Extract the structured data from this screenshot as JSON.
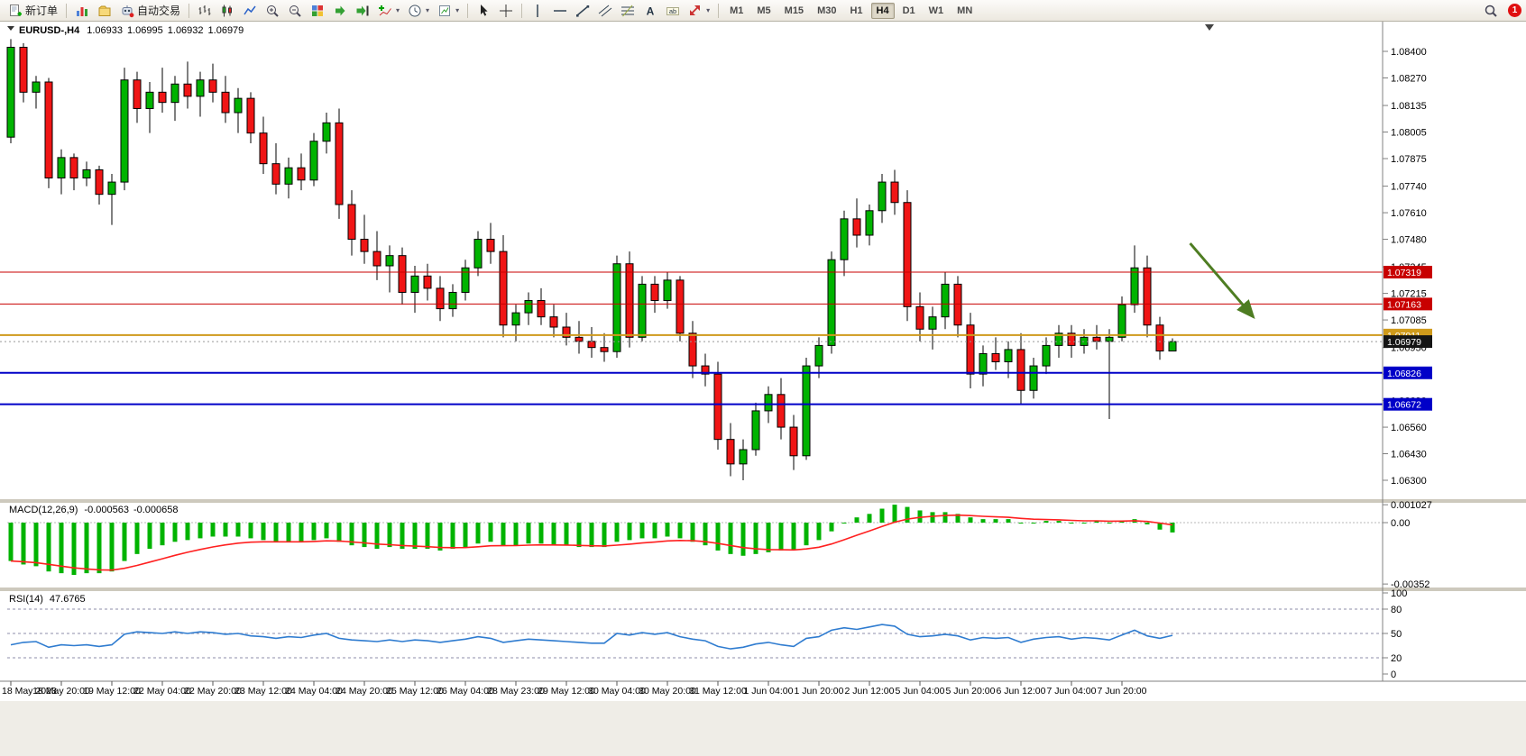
{
  "toolbar": {
    "items": [
      {
        "type": "labeled",
        "name": "new-order-button",
        "glyph": "neworder",
        "label": "新订单"
      },
      {
        "type": "sep"
      },
      {
        "type": "icon",
        "name": "charts-button",
        "glyph": "charts"
      },
      {
        "type": "icon",
        "name": "profiles-button",
        "glyph": "profiles"
      },
      {
        "type": "labeled",
        "name": "auto-trading-button",
        "glyph": "autotrade",
        "label": "自动交易"
      },
      {
        "type": "sep"
      },
      {
        "type": "icon",
        "name": "bar-chart-mode-button",
        "glyph": "bars"
      },
      {
        "type": "icon",
        "name": "candlestick-mode-button",
        "glyph": "candlesticks"
      },
      {
        "type": "icon",
        "name": "line-chart-mode-button",
        "glyph": "linechart"
      },
      {
        "type": "icon",
        "name": "zoom-in-button",
        "glyph": "zoomin"
      },
      {
        "type": "icon",
        "name": "zoom-out-button",
        "glyph": "zoomout"
      },
      {
        "type": "icon",
        "name": "tile-windows-button",
        "glyph": "tile"
      },
      {
        "type": "icon",
        "name": "auto-scroll-button",
        "glyph": "autoscroll"
      },
      {
        "type": "icon",
        "name": "chart-shift-button",
        "glyph": "chartshift"
      },
      {
        "type": "dropdown",
        "name": "indicators-button",
        "glyph": "indicators"
      },
      {
        "type": "dropdown",
        "name": "periods-button",
        "glyph": "periods"
      },
      {
        "type": "dropdown",
        "name": "templates-button",
        "glyph": "templates"
      },
      {
        "type": "sep"
      },
      {
        "type": "icon",
        "name": "cursor-button",
        "glyph": "cursor"
      },
      {
        "type": "icon",
        "name": "crosshair-button",
        "glyph": "crosshair"
      },
      {
        "type": "sep"
      },
      {
        "type": "icon",
        "name": "vertical-line-button",
        "glyph": "vline"
      },
      {
        "type": "icon",
        "name": "horizontal-line-button",
        "glyph": "hline"
      },
      {
        "type": "icon",
        "name": "trendline-button",
        "glyph": "tline"
      },
      {
        "type": "icon",
        "name": "channel-button",
        "glyph": "channel"
      },
      {
        "type": "icon",
        "name": "fibonacci-button",
        "glyph": "fibo"
      },
      {
        "type": "icon",
        "name": "text-button",
        "glyph": "textA"
      },
      {
        "type": "icon",
        "name": "text-label-button",
        "glyph": "textlabel"
      },
      {
        "type": "dropdown",
        "name": "arrows-button",
        "glyph": "arrows"
      },
      {
        "type": "sep"
      }
    ],
    "timeframes": [
      "M1",
      "M5",
      "M15",
      "M30",
      "H1",
      "H4",
      "D1",
      "W1",
      "MN"
    ],
    "active_timeframe": "H4",
    "notification_count": "1"
  },
  "chart": {
    "symbol": "EURUSD-",
    "timeframe": "H4",
    "open": "1.06933",
    "high": "1.06995",
    "low": "1.06932",
    "close": "1.06979"
  },
  "chart_data": {
    "type": "candlestick",
    "title": "EURUSD-,H4",
    "x_label_step": 4,
    "x_labels": [
      "18 May 2023",
      "18 May 20:00",
      "19 May 12:00",
      "22 May 04:00",
      "22 May 20:00",
      "23 May 12:00",
      "24 May 04:00",
      "24 May 20:00",
      "25 May 12:00",
      "26 May 04:00",
      "28 May 23:00",
      "29 May 12:00",
      "30 May 04:00",
      "30 May 20:00",
      "31 May 12:00",
      "1 Jun 04:00",
      "1 Jun 20:00",
      "2 Jun 12:00",
      "5 Jun 04:00",
      "5 Jun 20:00",
      "6 Jun 12:00",
      "7 Jun 04:00",
      "7 Jun 20:00"
    ],
    "y_ticks": [
      {
        "v": 1.084,
        "label": "1.08400"
      },
      {
        "v": 1.0827,
        "label": "1.08270"
      },
      {
        "v": 1.08135,
        "label": "1.08135"
      },
      {
        "v": 1.08005,
        "label": "1.08005"
      },
      {
        "v": 1.07875,
        "label": "1.07875"
      },
      {
        "v": 1.0774,
        "label": "1.07740"
      },
      {
        "v": 1.0761,
        "label": "1.07610"
      },
      {
        "v": 1.0748,
        "label": "1.07480"
      },
      {
        "v": 1.07345,
        "label": "1.07345"
      },
      {
        "v": 1.07215,
        "label": "1.07215"
      },
      {
        "v": 1.07085,
        "label": "1.07085"
      },
      {
        "v": 1.0695,
        "label": "1.06950"
      },
      {
        "v": 1.0682,
        "label": "1.06820"
      },
      {
        "v": 1.0669,
        "label": "1.06690"
      },
      {
        "v": 1.0656,
        "label": "1.06560"
      },
      {
        "v": 1.0643,
        "label": "1.06430"
      },
      {
        "v": 1.063,
        "label": "1.06300"
      }
    ],
    "candles": [
      [
        1.0798,
        1.0846,
        1.0795,
        1.0842
      ],
      [
        1.0842,
        1.0844,
        1.0815,
        1.082
      ],
      [
        1.082,
        1.0828,
        1.0812,
        1.0825
      ],
      [
        1.0825,
        1.0827,
        1.0773,
        1.0778
      ],
      [
        1.0778,
        1.0792,
        1.077,
        1.0788
      ],
      [
        1.0788,
        1.079,
        1.0772,
        1.0778
      ],
      [
        1.0778,
        1.0786,
        1.0774,
        1.0782
      ],
      [
        1.0782,
        1.0784,
        1.0765,
        1.077
      ],
      [
        1.077,
        1.078,
        1.0755,
        1.0776
      ],
      [
        1.0776,
        1.0832,
        1.0772,
        1.0826
      ],
      [
        1.0826,
        1.083,
        1.0805,
        1.0812
      ],
      [
        1.0812,
        1.0825,
        1.08,
        1.082
      ],
      [
        1.082,
        1.0832,
        1.081,
        1.0815
      ],
      [
        1.0815,
        1.0828,
        1.0806,
        1.0824
      ],
      [
        1.0824,
        1.0835,
        1.0812,
        1.0818
      ],
      [
        1.0818,
        1.083,
        1.0808,
        1.0826
      ],
      [
        1.0826,
        1.0834,
        1.0815,
        1.082
      ],
      [
        1.082,
        1.0828,
        1.0805,
        1.081
      ],
      [
        1.081,
        1.0822,
        1.08,
        1.0817
      ],
      [
        1.0817,
        1.082,
        1.0795,
        1.08
      ],
      [
        1.08,
        1.0808,
        1.078,
        1.0785
      ],
      [
        1.0785,
        1.0795,
        1.077,
        1.0775
      ],
      [
        1.0775,
        1.0788,
        1.0768,
        1.0783
      ],
      [
        1.0783,
        1.079,
        1.0772,
        1.0777
      ],
      [
        1.0777,
        1.08,
        1.0774,
        1.0796
      ],
      [
        1.0796,
        1.081,
        1.079,
        1.0805
      ],
      [
        1.0805,
        1.0812,
        1.0758,
        1.0765
      ],
      [
        1.0765,
        1.0772,
        1.074,
        1.0748
      ],
      [
        1.0748,
        1.076,
        1.0736,
        1.0742
      ],
      [
        1.0742,
        1.0752,
        1.0728,
        1.0735
      ],
      [
        1.0735,
        1.0745,
        1.0722,
        1.074
      ],
      [
        1.074,
        1.0744,
        1.0716,
        1.0722
      ],
      [
        1.0722,
        1.0735,
        1.0712,
        1.073
      ],
      [
        1.073,
        1.0736,
        1.0718,
        1.0724
      ],
      [
        1.0724,
        1.073,
        1.0708,
        1.0714
      ],
      [
        1.0714,
        1.0726,
        1.071,
        1.0722
      ],
      [
        1.0722,
        1.0738,
        1.0718,
        1.0734
      ],
      [
        1.0734,
        1.0752,
        1.073,
        1.0748
      ],
      [
        1.0748,
        1.0756,
        1.0736,
        1.0742
      ],
      [
        1.0742,
        1.075,
        1.07,
        1.0706
      ],
      [
        1.0706,
        1.0716,
        1.0698,
        1.0712
      ],
      [
        1.0712,
        1.0722,
        1.0706,
        1.0718
      ],
      [
        1.0718,
        1.0724,
        1.0706,
        1.071
      ],
      [
        1.071,
        1.0716,
        1.07,
        1.0705
      ],
      [
        1.0705,
        1.0712,
        1.0696,
        1.07
      ],
      [
        1.07,
        1.0708,
        1.0692,
        1.0698
      ],
      [
        1.0698,
        1.0705,
        1.069,
        1.0695
      ],
      [
        1.0695,
        1.0702,
        1.0688,
        1.0693
      ],
      [
        1.0693,
        1.074,
        1.069,
        1.0736
      ],
      [
        1.0736,
        1.0742,
        1.0695,
        1.07
      ],
      [
        1.07,
        1.073,
        1.0698,
        1.0726
      ],
      [
        1.0726,
        1.073,
        1.0712,
        1.0718
      ],
      [
        1.0718,
        1.0732,
        1.0714,
        1.0728
      ],
      [
        1.0728,
        1.073,
        1.0698,
        1.0702
      ],
      [
        1.0702,
        1.0708,
        1.068,
        1.0686
      ],
      [
        1.0686,
        1.0692,
        1.0676,
        1.0682
      ],
      [
        1.0682,
        1.0688,
        1.0645,
        1.065
      ],
      [
        1.065,
        1.0658,
        1.0632,
        1.0638
      ],
      [
        1.0638,
        1.065,
        1.063,
        1.0645
      ],
      [
        1.0645,
        1.0668,
        1.0642,
        1.0664
      ],
      [
        1.0664,
        1.0676,
        1.0658,
        1.0672
      ],
      [
        1.0672,
        1.068,
        1.065,
        1.0656
      ],
      [
        1.0656,
        1.0662,
        1.0635,
        1.0642
      ],
      [
        1.0642,
        1.069,
        1.064,
        1.0686
      ],
      [
        1.0686,
        1.07,
        1.068,
        1.0696
      ],
      [
        1.0696,
        1.0742,
        1.0692,
        1.0738
      ],
      [
        1.0738,
        1.0762,
        1.073,
        1.0758
      ],
      [
        1.0758,
        1.0768,
        1.0744,
        1.075
      ],
      [
        1.075,
        1.0765,
        1.0745,
        1.0762
      ],
      [
        1.0762,
        1.078,
        1.0756,
        1.0776
      ],
      [
        1.0776,
        1.0782,
        1.076,
        1.0766
      ],
      [
        1.0766,
        1.0772,
        1.0708,
        1.0715
      ],
      [
        1.0715,
        1.0722,
        1.0698,
        1.0704
      ],
      [
        1.0704,
        1.0715,
        1.0694,
        1.071
      ],
      [
        1.071,
        1.0732,
        1.0704,
        1.0726
      ],
      [
        1.0726,
        1.073,
        1.07,
        1.0706
      ],
      [
        1.0706,
        1.0712,
        1.0675,
        1.0682
      ],
      [
        1.0682,
        1.0696,
        1.0676,
        1.0692
      ],
      [
        1.0692,
        1.07,
        1.0684,
        1.0688
      ],
      [
        1.0688,
        1.0698,
        1.068,
        1.0694
      ],
      [
        1.0694,
        1.0702,
        1.06672,
        1.0674
      ],
      [
        1.0674,
        1.069,
        1.067,
        1.0686
      ],
      [
        1.0686,
        1.07,
        1.0682,
        1.0696
      ],
      [
        1.0696,
        1.0706,
        1.069,
        1.0702
      ],
      [
        1.0702,
        1.0706,
        1.069,
        1.0696
      ],
      [
        1.0696,
        1.0704,
        1.0692,
        1.07
      ],
      [
        1.07,
        1.0706,
        1.0694,
        1.0698
      ],
      [
        1.0698,
        1.0704,
        1.066,
        1.07
      ],
      [
        1.07,
        1.072,
        1.0698,
        1.0716
      ],
      [
        1.0716,
        1.0745,
        1.0712,
        1.0734
      ],
      [
        1.0734,
        1.074,
        1.07,
        1.0706
      ],
      [
        1.0706,
        1.071,
        1.0689,
        1.06933
      ],
      [
        1.06933,
        1.06995,
        1.06932,
        1.06979
      ]
    ],
    "horizontal_lines": [
      {
        "price": 1.07319,
        "label": "1.07319",
        "color": "#c80000",
        "width": 1
      },
      {
        "price": 1.07163,
        "label": "1.07163",
        "color": "#c80000",
        "width": 1
      },
      {
        "price": 1.07011,
        "label": "1.07011",
        "color": "#cf9a1b",
        "width": 2
      },
      {
        "price": 1.06826,
        "label": "1.06826",
        "color": "#0000c8",
        "width": 2
      },
      {
        "price": 1.06672,
        "label": "1.06672",
        "color": "#0000c8",
        "width": 2
      }
    ],
    "bid": {
      "value": 1.06979,
      "label": "1.06979",
      "bg": "#141414"
    },
    "arrow_annotation": {
      "from_index": 93.4,
      "from_price": 1.0746,
      "to_index": 98.4,
      "to_price": 1.071,
      "color": "#4e7d22"
    },
    "colors": {
      "up": "#00b300",
      "down": "#f01515",
      "outline": "#000000",
      "background": "#ffffff"
    },
    "indicators": {
      "macd": {
        "name": "MACD(12,26,9)",
        "value_main": "-0.000563",
        "value_signal": "-0.000658",
        "signal_period": 9,
        "histogram_color": "#00b300",
        "signal_color": "#ff2020",
        "axis": [
          {
            "v": 0.001027,
            "label": "0.001027"
          },
          {
            "v": 0,
            "label": "0.00"
          },
          {
            "v": -0.00352,
            "label": "-0.00352"
          }
        ],
        "histogram": [
          -0.0022,
          -0.0024,
          -0.0025,
          -0.0028,
          -0.0029,
          -0.003,
          -0.0029,
          -0.0029,
          -0.0028,
          -0.0022,
          -0.0018,
          -0.0015,
          -0.0013,
          -0.0011,
          -0.001,
          -0.0009,
          -0.0008,
          -0.0008,
          -0.0008,
          -0.0009,
          -0.001,
          -0.0011,
          -0.0011,
          -0.0011,
          -0.001,
          -0.0009,
          -0.0011,
          -0.0013,
          -0.0014,
          -0.0015,
          -0.0014,
          -0.0015,
          -0.0015,
          -0.0015,
          -0.0016,
          -0.0015,
          -0.0014,
          -0.0012,
          -0.0011,
          -0.0013,
          -0.0013,
          -0.0012,
          -0.0012,
          -0.0013,
          -0.0013,
          -0.0014,
          -0.0014,
          -0.0014,
          -0.0011,
          -0.001,
          -0.0009,
          -0.0009,
          -0.0008,
          -0.0009,
          -0.0011,
          -0.0013,
          -0.0016,
          -0.0018,
          -0.0019,
          -0.0018,
          -0.0017,
          -0.0016,
          -0.0016,
          -0.0013,
          -0.001,
          -0.0005,
          0.0,
          0.0003,
          0.0005,
          0.0008,
          0.00103,
          0.0009,
          0.0007,
          0.0006,
          0.0006,
          0.0005,
          0.0003,
          0.0002,
          0.0002,
          0.0002,
          0.0,
          0.0,
          0.0001,
          0.0001,
          0.0,
          0.0,
          0.0001,
          0.0,
          0.0001,
          0.0002,
          -0.0001,
          -0.0004,
          -0.000563
        ]
      },
      "rsi": {
        "name": "RSI(14)",
        "value": "47.6765",
        "line_color": "#2f7cd0",
        "range": [
          0,
          100
        ],
        "levels": [
          80,
          50,
          20
        ],
        "axis": [
          {
            "v": 100,
            "label": "100"
          },
          {
            "v": 80,
            "label": "80"
          },
          {
            "v": 50,
            "label": "50"
          },
          {
            "v": 20,
            "label": "20"
          },
          {
            "v": 0,
            "label": "0"
          }
        ],
        "values": [
          36,
          39,
          40,
          33,
          36,
          35,
          36,
          34,
          36,
          49,
          52,
          51,
          50,
          52,
          50,
          52,
          51,
          49,
          50,
          47,
          46,
          44,
          46,
          45,
          48,
          50,
          44,
          42,
          41,
          40,
          42,
          40,
          42,
          41,
          39,
          41,
          43,
          46,
          44,
          39,
          41,
          43,
          42,
          41,
          40,
          39,
          38,
          38,
          50,
          48,
          51,
          49,
          51,
          46,
          43,
          41,
          34,
          31,
          33,
          37,
          39,
          36,
          34,
          44,
          46,
          54,
          57,
          55,
          58,
          61,
          59,
          49,
          46,
          47,
          49,
          47,
          42,
          45,
          44,
          45,
          39,
          43,
          45,
          46,
          43,
          45,
          44,
          42,
          48,
          54,
          47,
          44,
          47.6765
        ]
      }
    }
  }
}
